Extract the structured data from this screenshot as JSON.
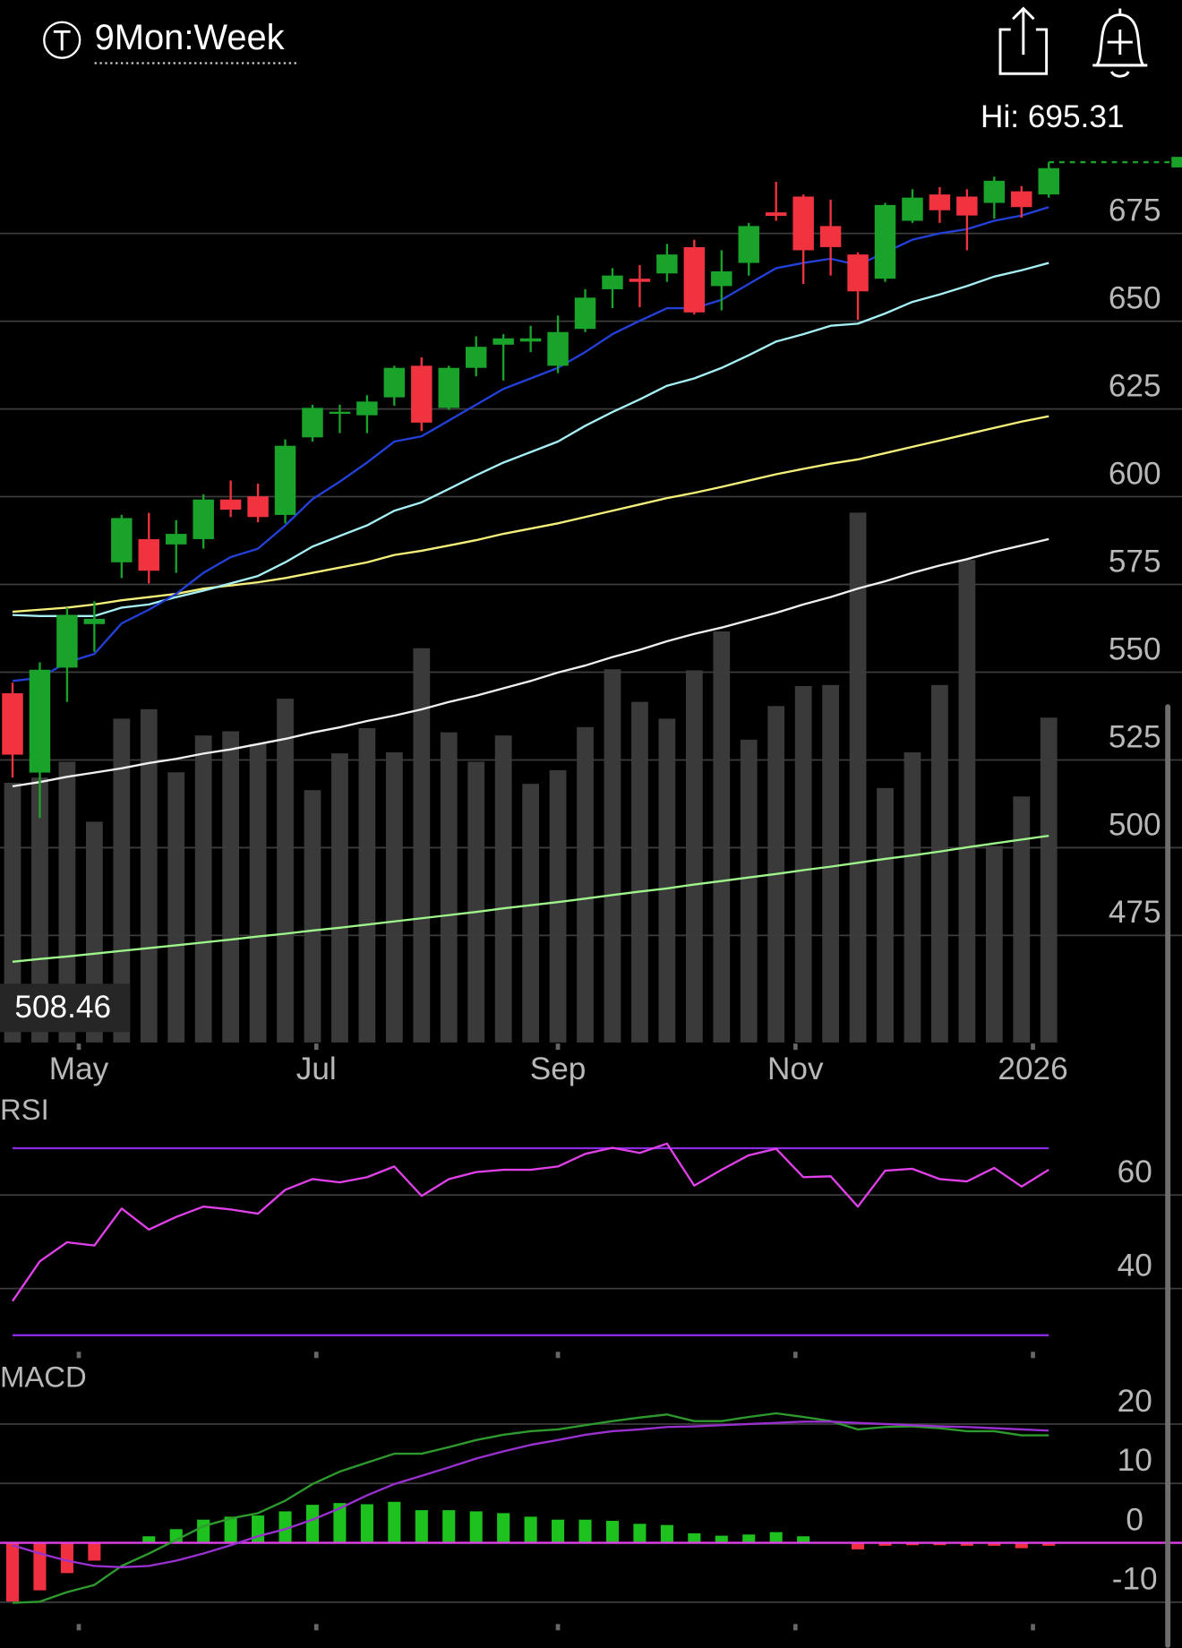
{
  "header": {
    "title": "9Mon:Week"
  },
  "chart_data": [
    {
      "type": "candlestick",
      "hi_label": "Hi: 695.31",
      "lo_label": "508.46",
      "xlim": [
        -0.46,
        42.5
      ],
      "xticks": [
        {
          "value": 2.43,
          "label": "May"
        },
        {
          "value": 11.14,
          "label": "Jul"
        },
        {
          "value": 20.0,
          "label": "Sep"
        },
        {
          "value": 28.71,
          "label": "Nov"
        },
        {
          "value": 37.42,
          "label": "2026"
        }
      ],
      "ylim": [
        444.5,
        699.5
      ],
      "yticks": [
        475,
        500,
        525,
        550,
        575,
        600,
        625,
        650,
        675
      ],
      "up_color": "#1aa32a",
      "down_color": "#f0333f",
      "open": [
        544,
        521.4,
        551.3,
        563.7,
        581.3,
        587.9,
        586.4,
        587.9,
        599.2,
        600.1,
        594.8,
        616.9,
        623.6,
        623.2,
        628.3,
        637.3,
        625.3,
        636.7,
        643.3,
        644.2,
        637.3,
        647.8,
        659.1,
        662.1,
        663.6,
        671.1,
        660.0,
        666.6,
        681.0,
        685.5,
        677.1,
        669.0,
        662.1,
        678.6,
        686.1,
        685.5,
        683.7,
        687.0,
        686.1
      ],
      "high": [
        547,
        552.8,
        568.4,
        570.2,
        594.8,
        595.4,
        593.3,
        600.7,
        604.6,
        603.7,
        616.3,
        626.2,
        626.2,
        628.9,
        637.3,
        639.7,
        637.3,
        645.7,
        646.3,
        648.7,
        651.6,
        659.1,
        665.1,
        666.0,
        672.0,
        673.2,
        670.2,
        678.0,
        689.7,
        686.1,
        684.6,
        669.6,
        683.7,
        687.6,
        688.2,
        687.6,
        691.2,
        688.5,
        695.31
      ],
      "low": [
        520,
        508.46,
        541.5,
        555.8,
        576.8,
        575.3,
        578.3,
        585.2,
        594.2,
        592.7,
        592.4,
        615.7,
        618.1,
        618.1,
        625.9,
        618.7,
        624.7,
        634.3,
        633.1,
        641.2,
        635.2,
        646.9,
        653.7,
        654.0,
        661.2,
        651.9,
        653.1,
        663.0,
        678.6,
        660.6,
        663.0,
        650.4,
        661.2,
        678.0,
        678.0,
        670.2,
        679.2,
        679.5,
        685.2
      ],
      "close": [
        526.5,
        550.7,
        566.3,
        565.2,
        593.9,
        578.9,
        589.4,
        599.2,
        596.3,
        594.2,
        614.5,
        625.3,
        624.2,
        627.1,
        636.7,
        621.1,
        636.7,
        642.7,
        645.1,
        645.1,
        646.9,
        656.7,
        663.0,
        661.2,
        669.0,
        652.5,
        664.2,
        677.1,
        680.0,
        670.2,
        671.1,
        658.5,
        683.1,
        685.2,
        681.6,
        680.1,
        690.0,
        682.5,
        693.6
      ],
      "volume": {
        "color": "#3a3a3a",
        "values": [
          247,
          252,
          267,
          210,
          308,
          317,
          257,
          292,
          296,
          284,
          327,
          240,
          275,
          299,
          276,
          375,
          295,
          267,
          292,
          246,
          259,
          300,
          355,
          324,
          308,
          354,
          391,
          288,
          320,
          339,
          340,
          504,
          242,
          276,
          340,
          459,
          187,
          234,
          309
        ]
      },
      "series": [
        {
          "color": "#9ef58a",
          "values": [
            467.5,
            468.3,
            469.0,
            469.8,
            470.6,
            471.4,
            472.2,
            473.0,
            473.8,
            474.7,
            475.5,
            476.4,
            477.2,
            478.1,
            479.0,
            479.9,
            480.8,
            481.7,
            482.7,
            483.6,
            484.5,
            485.5,
            486.5,
            487.5,
            488.4,
            489.5,
            490.5,
            491.5,
            492.5,
            493.6,
            494.6,
            495.7,
            496.8,
            497.8,
            498.9,
            500.1,
            501.2,
            502.3,
            503.4
          ]
        },
        {
          "color": "#f0f0f0",
          "values": [
            517.5,
            518.7,
            520.2,
            521.4,
            522.6,
            524.1,
            525.3,
            526.8,
            528.0,
            529.5,
            531.0,
            532.8,
            534.3,
            536.1,
            537.6,
            539.4,
            541.5,
            543.3,
            545.4,
            547.5,
            549.9,
            551.9,
            554.3,
            556.4,
            558.8,
            560.9,
            562.7,
            564.8,
            566.9,
            569.3,
            571.4,
            573.8,
            575.9,
            578.3,
            580.4,
            582.2,
            584.3,
            586.1,
            587.9
          ]
        },
        {
          "color": "#f5f07a",
          "values": [
            567.2,
            567.8,
            568.4,
            569.3,
            570.5,
            571.4,
            572.3,
            573.8,
            574.7,
            575.6,
            576.8,
            578.3,
            579.8,
            581.3,
            583.4,
            584.6,
            586.1,
            587.6,
            589.4,
            590.9,
            592.4,
            594.2,
            596.0,
            597.8,
            599.6,
            601.1,
            602.8,
            604.6,
            606.4,
            607.9,
            609.4,
            610.6,
            612.4,
            614.2,
            616.0,
            617.8,
            619.6,
            621.4,
            622.9
          ]
        },
        {
          "color": "#a6f0f5",
          "values": [
            566.3,
            566.0,
            566.0,
            566.0,
            568.4,
            569.3,
            571.4,
            573.2,
            575.3,
            577.4,
            581.3,
            585.8,
            588.8,
            591.8,
            596.0,
            598.4,
            602.2,
            606.1,
            609.7,
            612.7,
            615.7,
            620.2,
            624.1,
            627.7,
            631.6,
            633.7,
            636.7,
            640.3,
            644.2,
            646.3,
            648.7,
            649.3,
            652.2,
            655.5,
            657.6,
            660.0,
            662.7,
            664.5,
            666.6
          ]
        },
        {
          "color": "#2340d8",
          "values": [
            547.5,
            548.4,
            552.8,
            555.2,
            563.9,
            567.8,
            572.3,
            578.3,
            582.8,
            585.2,
            591.8,
            599.3,
            604.3,
            609.7,
            615.7,
            617.2,
            621.7,
            626.2,
            630.7,
            633.7,
            636.7,
            641.2,
            646.3,
            650.1,
            653.7,
            653.7,
            656.1,
            660.6,
            665.1,
            666.6,
            667.8,
            666.0,
            669.6,
            673.2,
            675.0,
            676.2,
            678.6,
            680.1,
            682.5
          ]
        }
      ]
    },
    {
      "type": "line",
      "title": "RSI",
      "ylim": [
        26.7,
        80.7
      ],
      "yticks": [
        40,
        60
      ],
      "levels": [
        70,
        30
      ],
      "level_color": "#8a2be2",
      "series": [
        {
          "color": "#e040e8",
          "values": [
            37.3,
            45.8,
            49.9,
            49.2,
            57.1,
            52.6,
            55.3,
            57.5,
            56.9,
            56.0,
            61.1,
            63.4,
            62.7,
            63.8,
            66.1,
            59.8,
            63.4,
            64.9,
            65.4,
            65.4,
            66.1,
            68.8,
            70.1,
            69.0,
            71.0,
            62.0,
            65.4,
            68.5,
            69.9,
            63.8,
            64.0,
            57.5,
            65.2,
            65.6,
            63.4,
            62.9,
            65.8,
            61.8,
            65.4
          ]
        }
      ]
    },
    {
      "type": "macd",
      "title": "MACD",
      "ylim": [
        -13.5,
        29.5
      ],
      "yticks": [
        -10,
        0,
        10,
        20
      ],
      "zero_color": "#e040e8",
      "histogram": {
        "up_color": "#1ec21e",
        "down_color": "#f03040",
        "values": [
          -10.1,
          -8.0,
          -5.1,
          -3.0,
          0,
          1.1,
          2.3,
          3.9,
          4.4,
          4.6,
          5.3,
          6.4,
          6.7,
          6.5,
          6.9,
          5.5,
          5.5,
          5.3,
          5.0,
          4.4,
          3.9,
          3.9,
          3.7,
          3.2,
          3.0,
          1.6,
          1.2,
          1.4,
          1.8,
          1.1,
          0,
          -1.1,
          -0.5,
          -0.4,
          -0.4,
          -0.5,
          -0.5,
          -0.9,
          -0.5
        ]
      },
      "series": [
        {
          "color": "#2e9a2e",
          "values": [
            -10.1,
            -9.9,
            -8.3,
            -7.1,
            -3.9,
            -1.8,
            0.5,
            2.8,
            4.1,
            5.0,
            7.1,
            9.9,
            12.0,
            13.5,
            15.0,
            15.0,
            16.1,
            17.3,
            18.2,
            18.8,
            19.1,
            19.8,
            20.5,
            21.1,
            21.6,
            20.5,
            20.5,
            21.2,
            21.8,
            21.2,
            20.5,
            19.1,
            19.5,
            19.6,
            19.3,
            18.8,
            18.8,
            18.1,
            18.1
          ]
        },
        {
          "color": "#9a30d0",
          "values": [
            -0.4,
            -1.8,
            -3.0,
            -3.9,
            -4.1,
            -3.9,
            -3.0,
            -1.8,
            -0.4,
            1.1,
            2.3,
            3.9,
            5.8,
            8.0,
            9.9,
            11.3,
            12.7,
            14.2,
            15.4,
            16.5,
            17.3,
            18.2,
            18.8,
            19.1,
            19.5,
            19.6,
            19.8,
            20.0,
            20.2,
            20.4,
            20.4,
            20.2,
            20.0,
            19.8,
            19.6,
            19.5,
            19.3,
            19.1,
            18.9
          ]
        }
      ]
    }
  ]
}
